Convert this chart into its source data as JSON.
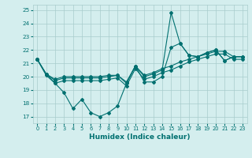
{
  "xlabel": "Humidex (Indice chaleur)",
  "xlim": [
    -0.5,
    23.5
  ],
  "ylim": [
    16.5,
    25.4
  ],
  "yticks": [
    17,
    18,
    19,
    20,
    21,
    22,
    23,
    24,
    25
  ],
  "xticks": [
    0,
    1,
    2,
    3,
    4,
    5,
    6,
    7,
    8,
    9,
    10,
    11,
    12,
    13,
    14,
    15,
    16,
    17,
    18,
    19,
    20,
    21,
    22,
    23
  ],
  "bg_color": "#d4eeee",
  "line_color": "#007070",
  "series": [
    [
      21.3,
      20.2,
      19.5,
      18.8,
      17.6,
      18.3,
      17.3,
      17.0,
      17.3,
      17.8,
      19.5,
      20.8,
      19.6,
      19.6,
      20.0,
      22.2,
      22.5,
      21.6,
      21.5,
      21.8,
      22.0,
      21.2,
      21.5,
      21.5
    ],
    [
      21.3,
      20.2,
      19.8,
      20.0,
      20.0,
      20.0,
      20.0,
      20.0,
      20.1,
      20.1,
      19.6,
      20.8,
      20.1,
      20.3,
      20.6,
      20.8,
      21.1,
      21.3,
      21.5,
      21.7,
      21.9,
      21.9,
      21.5,
      21.5
    ],
    [
      21.3,
      20.2,
      19.7,
      19.9,
      19.9,
      19.9,
      19.9,
      19.9,
      20.0,
      20.1,
      19.5,
      20.8,
      20.0,
      20.2,
      20.5,
      24.8,
      22.5,
      21.6,
      21.5,
      21.8,
      22.0,
      21.2,
      21.5,
      21.5
    ],
    [
      21.3,
      20.1,
      19.5,
      19.7,
      19.7,
      19.7,
      19.7,
      19.7,
      19.8,
      19.9,
      19.3,
      20.6,
      19.8,
      20.0,
      20.3,
      20.5,
      20.8,
      21.1,
      21.3,
      21.5,
      21.7,
      21.7,
      21.3,
      21.3
    ]
  ]
}
